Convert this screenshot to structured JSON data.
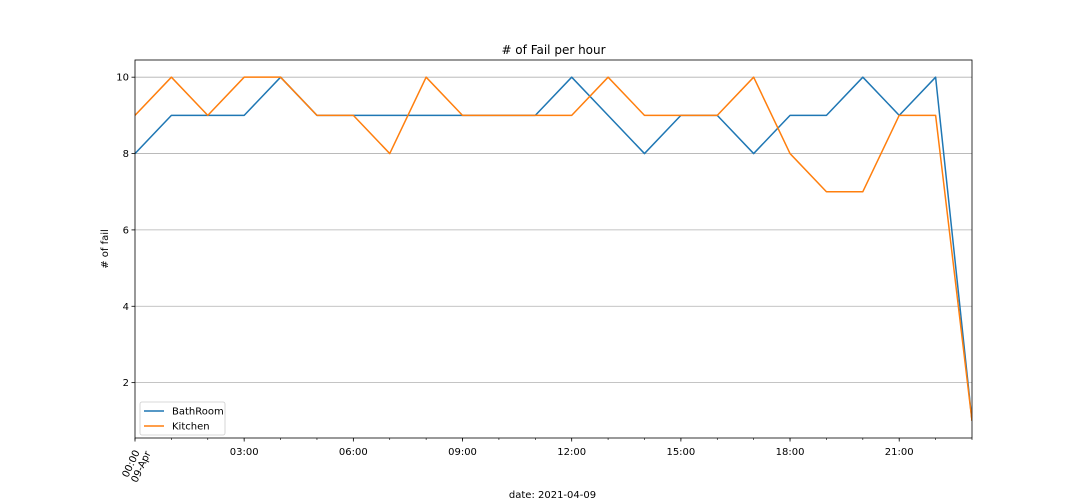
{
  "chart_data": {
    "type": "line",
    "title": "# of Fail per hour",
    "xlabel": "date: 2021-04-09",
    "ylabel": "# of fail",
    "x": [
      0,
      1,
      2,
      3,
      4,
      5,
      6,
      7,
      8,
      9,
      10,
      11,
      12,
      13,
      14,
      15,
      16,
      17,
      18,
      19,
      20,
      21,
      22,
      23
    ],
    "x_ticks": [
      {
        "hour": 0,
        "label": "00:00",
        "sublabel": "09-Apr"
      },
      {
        "hour": 3,
        "label": "03:00"
      },
      {
        "hour": 6,
        "label": "06:00"
      },
      {
        "hour": 9,
        "label": "09:00"
      },
      {
        "hour": 12,
        "label": "12:00"
      },
      {
        "hour": 15,
        "label": "15:00"
      },
      {
        "hour": 18,
        "label": "18:00"
      },
      {
        "hour": 21,
        "label": "21:00"
      }
    ],
    "y_ticks": [
      2,
      4,
      6,
      8,
      10
    ],
    "xlim": [
      0,
      23
    ],
    "ylim": [
      0.55,
      10.45
    ],
    "grid": "y",
    "legend_position": "lower-left",
    "series": [
      {
        "name": "BathRoom",
        "color": "#1f77b4",
        "values": [
          8,
          9,
          9,
          9,
          10,
          9,
          9,
          9,
          9,
          9,
          9,
          9,
          10,
          9,
          8,
          9,
          9,
          8,
          9,
          9,
          10,
          9,
          10,
          1
        ]
      },
      {
        "name": "Kitchen",
        "color": "#ff7f0e",
        "values": [
          9,
          10,
          9,
          10,
          10,
          9,
          9,
          8,
          10,
          9,
          9,
          9,
          9,
          10,
          9,
          9,
          9,
          10,
          8,
          7,
          7,
          9,
          9,
          1
        ]
      }
    ]
  }
}
